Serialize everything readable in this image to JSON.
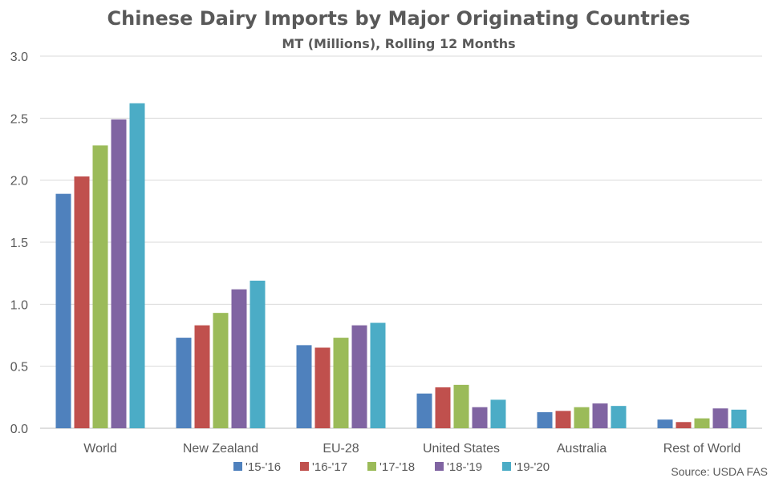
{
  "chart_data": {
    "type": "bar",
    "title": "Chinese Dairy Imports by Major Originating Countries",
    "subtitle": "MT (Millions), Rolling 12 Months",
    "categories": [
      "World",
      "New Zealand",
      "EU-28",
      "United States",
      "Australia",
      "Rest of World"
    ],
    "series": [
      {
        "name": "'15-'16",
        "color": "#4F81BD",
        "values": [
          1.89,
          0.73,
          0.67,
          0.28,
          0.13,
          0.07
        ]
      },
      {
        "name": "'16-'17",
        "color": "#C0504D",
        "values": [
          2.03,
          0.83,
          0.65,
          0.33,
          0.14,
          0.05
        ]
      },
      {
        "name": "'17-'18",
        "color": "#9BBB59",
        "values": [
          2.28,
          0.93,
          0.73,
          0.35,
          0.17,
          0.08
        ]
      },
      {
        "name": "'18-'19",
        "color": "#8064A2",
        "values": [
          2.49,
          1.12,
          0.83,
          0.17,
          0.2,
          0.16
        ]
      },
      {
        "name": "'19-'20",
        "color": "#4BACC6",
        "values": [
          2.62,
          1.19,
          0.85,
          0.23,
          0.18,
          0.15
        ]
      }
    ],
    "ylim": [
      0,
      3.0
    ],
    "yticks": [
      "0.0",
      "0.5",
      "1.0",
      "1.5",
      "2.0",
      "2.5",
      "3.0"
    ],
    "grid": true,
    "legend": "bottom",
    "source": "Source: USDA FAS"
  }
}
